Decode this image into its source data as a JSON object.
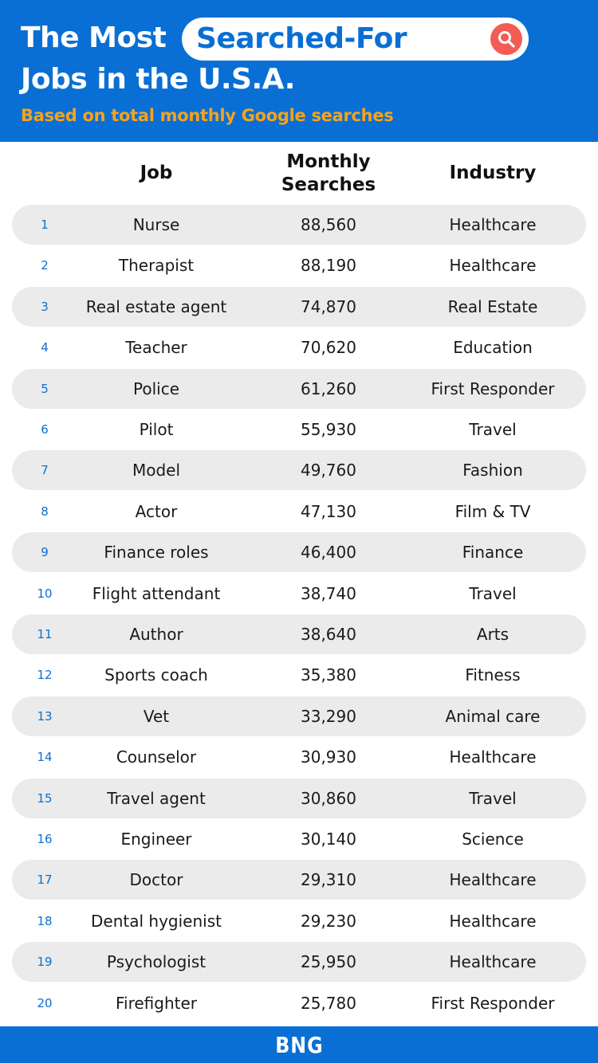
{
  "header": {
    "title_prefix": "The Most",
    "search_text": "Searched-For",
    "title_line2": "Jobs in the U.S.A.",
    "subtitle": "Based on total monthly Google searches",
    "search_icon": "search-icon",
    "colors": {
      "background": "#0a6fd4",
      "subtitle": "#f7a21b",
      "search_button": "#f25c54"
    }
  },
  "columns": {
    "job": "Job",
    "searches": "Monthly Searches",
    "industry": "Industry"
  },
  "rows": [
    {
      "rank": "1",
      "job": "Nurse",
      "searches": "88,560",
      "industry": "Healthcare"
    },
    {
      "rank": "2",
      "job": "Therapist",
      "searches": "88,190",
      "industry": "Healthcare"
    },
    {
      "rank": "3",
      "job": "Real estate agent",
      "searches": "74,870",
      "industry": "Real Estate"
    },
    {
      "rank": "4",
      "job": "Teacher",
      "searches": "70,620",
      "industry": "Education"
    },
    {
      "rank": "5",
      "job": "Police",
      "searches": "61,260",
      "industry": "First Responder"
    },
    {
      "rank": "6",
      "job": "Pilot",
      "searches": "55,930",
      "industry": "Travel"
    },
    {
      "rank": "7",
      "job": "Model",
      "searches": "49,760",
      "industry": "Fashion"
    },
    {
      "rank": "8",
      "job": "Actor",
      "searches": "47,130",
      "industry": "Film & TV"
    },
    {
      "rank": "9",
      "job": "Finance roles",
      "searches": "46,400",
      "industry": "Finance"
    },
    {
      "rank": "10",
      "job": "Flight attendant",
      "searches": "38,740",
      "industry": "Travel"
    },
    {
      "rank": "11",
      "job": "Author",
      "searches": "38,640",
      "industry": "Arts"
    },
    {
      "rank": "12",
      "job": "Sports coach",
      "searches": "35,380",
      "industry": "Fitness"
    },
    {
      "rank": "13",
      "job": "Vet",
      "searches": "33,290",
      "industry": "Animal care"
    },
    {
      "rank": "14",
      "job": "Counselor",
      "searches": "30,930",
      "industry": "Healthcare"
    },
    {
      "rank": "15",
      "job": "Travel agent",
      "searches": "30,860",
      "industry": "Travel"
    },
    {
      "rank": "16",
      "job": "Engineer",
      "searches": "30,140",
      "industry": "Science"
    },
    {
      "rank": "17",
      "job": "Doctor",
      "searches": "29,310",
      "industry": "Healthcare"
    },
    {
      "rank": "18",
      "job": "Dental hygienist",
      "searches": "29,230",
      "industry": "Healthcare"
    },
    {
      "rank": "19",
      "job": "Psychologist",
      "searches": "25,950",
      "industry": "Healthcare"
    },
    {
      "rank": "20",
      "job": "Firefighter",
      "searches": "25,780",
      "industry": "First Responder"
    }
  ],
  "footer": {
    "logo": "BNG"
  }
}
